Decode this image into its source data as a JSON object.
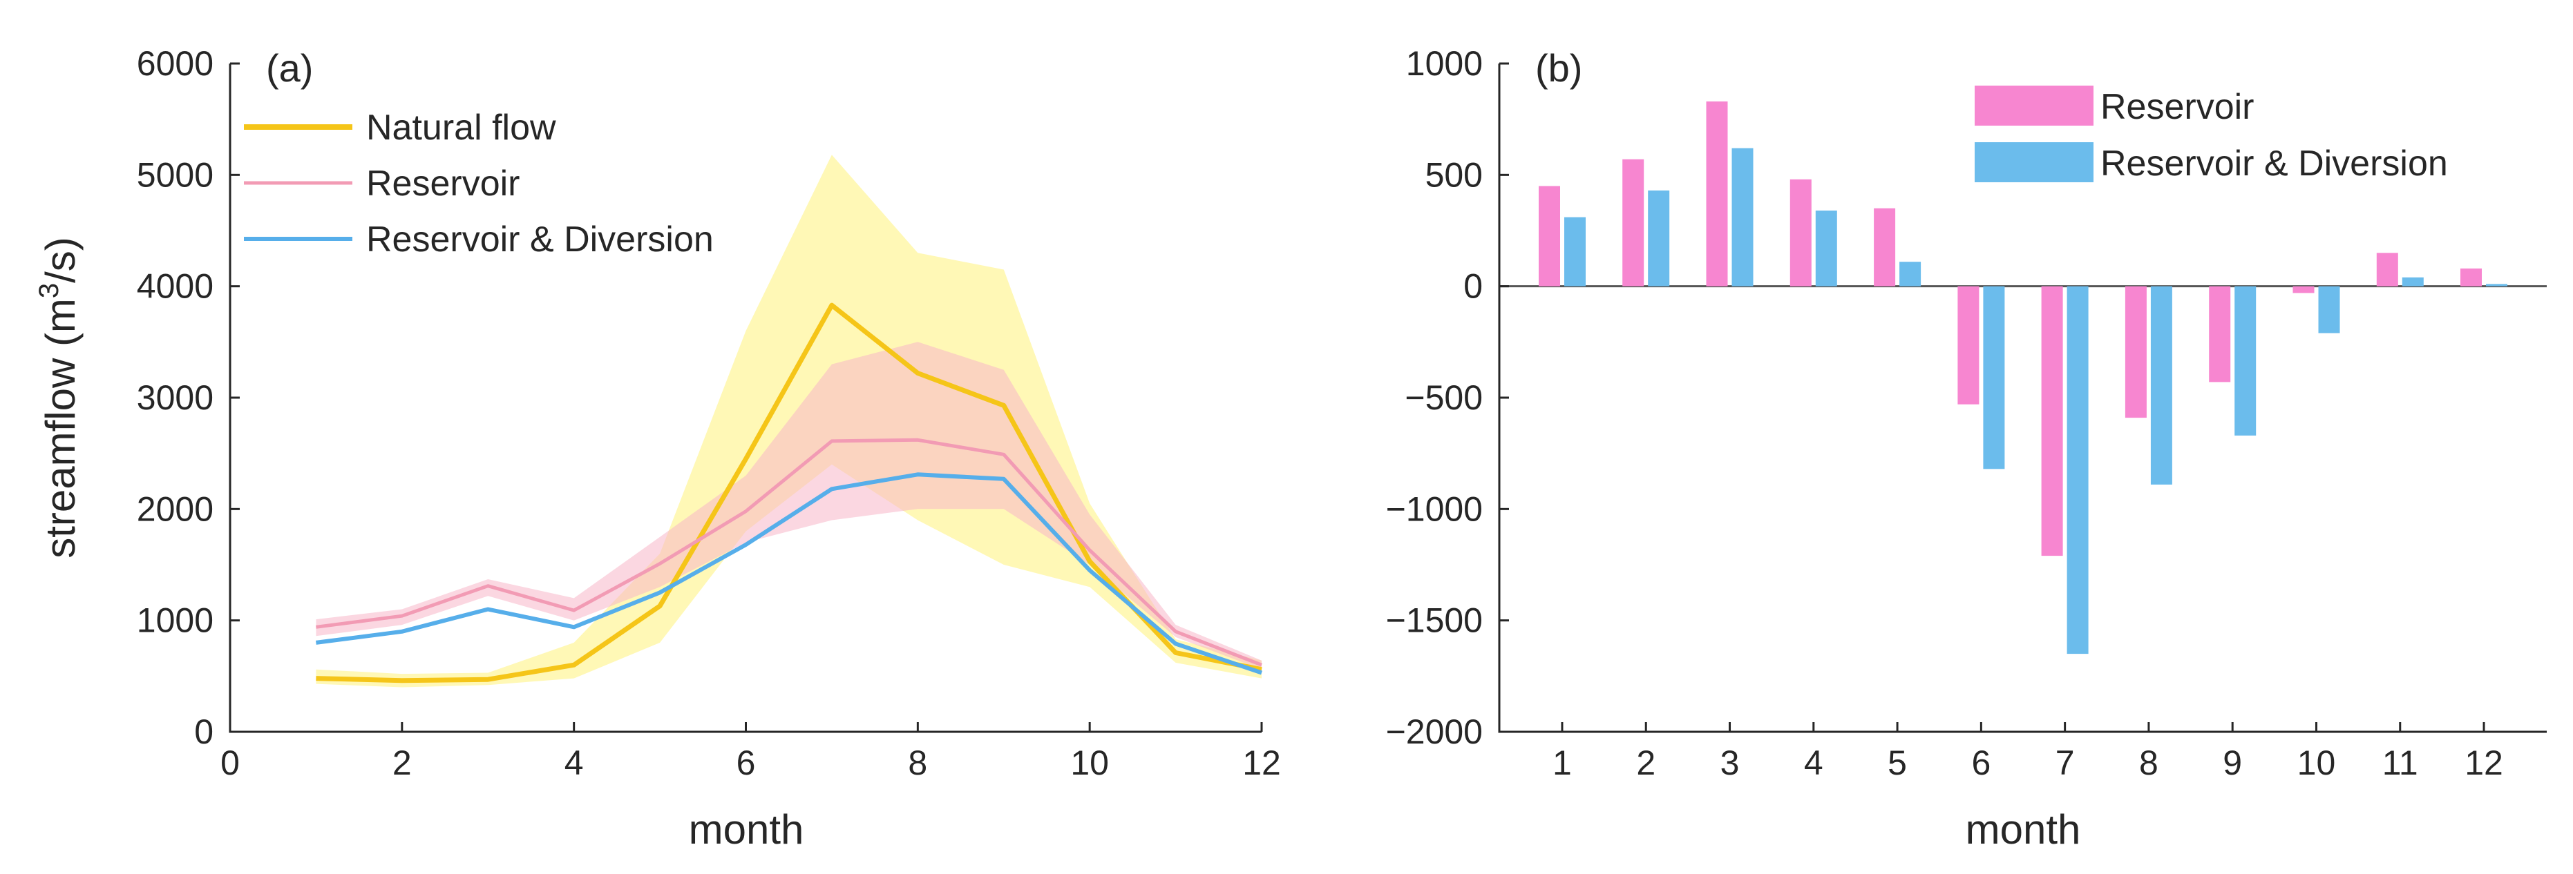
{
  "chart_data": [
    {
      "type": "line",
      "panel_label": "(a)",
      "xlabel": "month",
      "ylabel": {
        "prefix": "streamflow (m",
        "superscript": "3",
        "suffix": "/s)"
      },
      "xlim": [
        0,
        12
      ],
      "ylim": [
        0,
        6000
      ],
      "xticks": [
        0,
        2,
        4,
        6,
        8,
        10,
        12
      ],
      "yticks": [
        0,
        1000,
        2000,
        3000,
        4000,
        5000,
        6000
      ],
      "x": [
        1,
        2,
        3,
        4,
        5,
        6,
        7,
        8,
        9,
        10,
        11,
        12
      ],
      "series": [
        {
          "name": "Natural flow",
          "color": "#f5c518",
          "band_color": "#fff27a",
          "values": [
            480,
            460,
            470,
            600,
            1130,
            2450,
            3830,
            3220,
            2930,
            1530,
            710,
            560
          ],
          "band_lower": [
            430,
            400,
            420,
            480,
            800,
            1800,
            2400,
            1900,
            1500,
            1300,
            620,
            480
          ],
          "band_upper": [
            560,
            520,
            530,
            800,
            1600,
            3600,
            5180,
            4300,
            4150,
            2050,
            830,
            640
          ]
        },
        {
          "name": "Reservoir",
          "color": "#f29bb4",
          "band_color": "#f7b6c8",
          "values": [
            940,
            1040,
            1310,
            1090,
            1510,
            1980,
            2610,
            2620,
            2490,
            1630,
            900,
            600
          ],
          "band_lower": [
            860,
            960,
            1220,
            1000,
            1300,
            1700,
            1900,
            2000,
            2000,
            1500,
            850,
            560
          ],
          "band_upper": [
            1010,
            1100,
            1370,
            1200,
            1750,
            2300,
            3300,
            3500,
            3250,
            1950,
            960,
            640
          ]
        },
        {
          "name": "Reservoir & Diversion",
          "color": "#56aeea",
          "values": [
            800,
            900,
            1100,
            940,
            1250,
            1680,
            2180,
            2310,
            2270,
            1450,
            790,
            530
          ]
        }
      ],
      "legend_position": "top-left"
    },
    {
      "type": "bar",
      "panel_label": "(b)",
      "xlabel": "month",
      "ylabel": "",
      "ylim": [
        -2000,
        1000
      ],
      "yticks": [
        -2000,
        -1500,
        -1000,
        -500,
        0,
        500,
        1000
      ],
      "categories": [
        "1",
        "2",
        "3",
        "4",
        "5",
        "6",
        "7",
        "8",
        "9",
        "10",
        "11",
        "12"
      ],
      "series": [
        {
          "name": "Reservoir",
          "color": "#f786d0",
          "values": [
            450,
            570,
            830,
            480,
            350,
            -530,
            -1210,
            -590,
            -430,
            -30,
            150,
            80
          ]
        },
        {
          "name": "Reservoir & Diversion",
          "color": "#6bbcec",
          "values": [
            310,
            430,
            620,
            340,
            110,
            -820,
            -1650,
            -890,
            -670,
            -210,
            40,
            10
          ]
        }
      ],
      "legend_position": "top-right"
    }
  ]
}
